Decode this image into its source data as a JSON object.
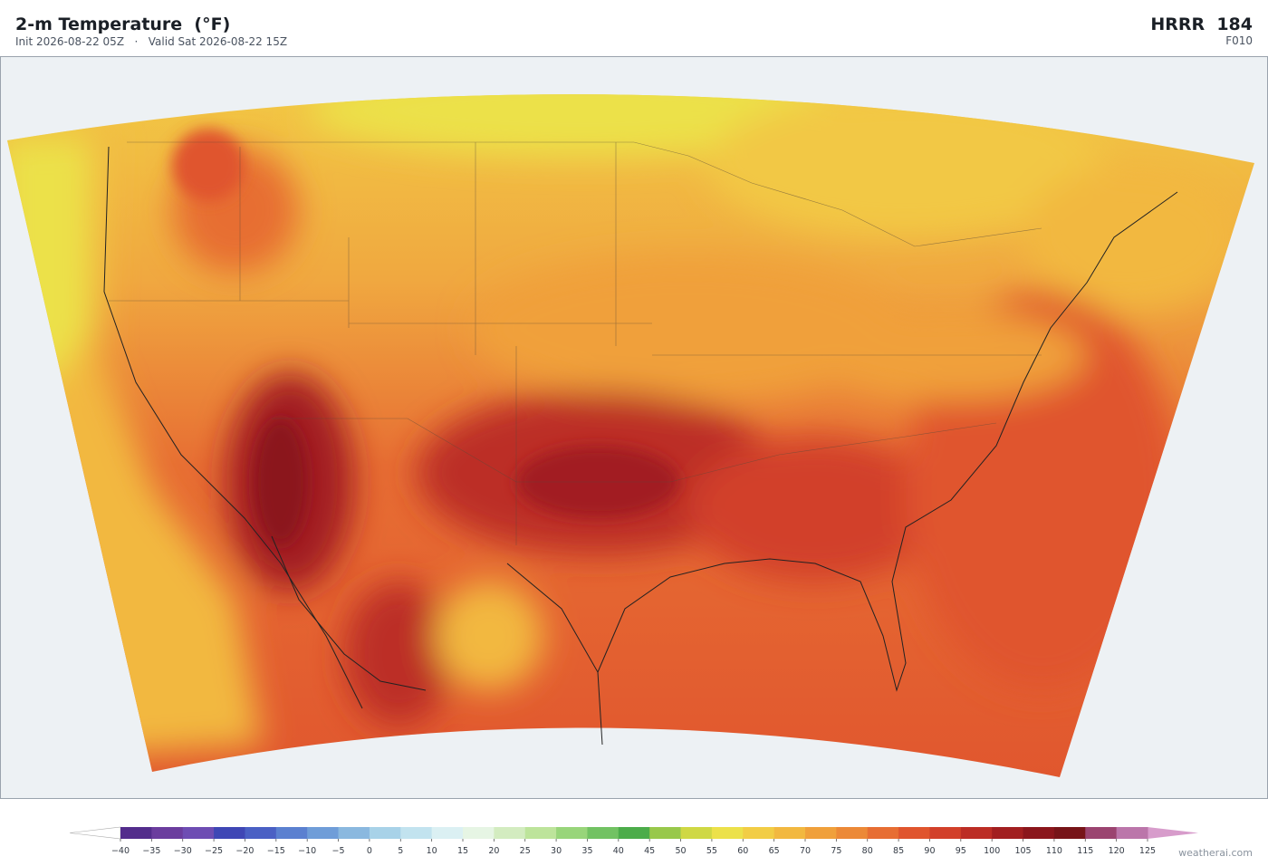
{
  "header": {
    "title": "2-m Temperature  (°F)",
    "init": "Init 2026-08-22 05Z",
    "separator": "·",
    "valid": "Valid Sat 2026-08-22 15Z",
    "model": "HRRR  184",
    "forecast_hour": "F010"
  },
  "colorbar": {
    "range": [
      -40,
      125
    ],
    "ticks": [
      {
        "value": -40,
        "label": "−40"
      },
      {
        "value": -35,
        "label": "−35"
      },
      {
        "value": -30,
        "label": "−30"
      },
      {
        "value": -25,
        "label": "−25"
      },
      {
        "value": -20,
        "label": "−20"
      },
      {
        "value": -15,
        "label": "−15"
      },
      {
        "value": -10,
        "label": "−10"
      },
      {
        "value": -5,
        "label": "−5"
      },
      0,
      5,
      10,
      15,
      20,
      25,
      30,
      35,
      40,
      45,
      50,
      55,
      60,
      65,
      70,
      75,
      80,
      85,
      90,
      95,
      100,
      105,
      110,
      115,
      120,
      125
    ],
    "colors": [
      "#532d8c",
      "#6b3d9e",
      "#6e4db3",
      "#3f47b5",
      "#4a60c4",
      "#5b80d0",
      "#6f9dd8",
      "#8ab8df",
      "#a8d2e8",
      "#c2e3ef",
      "#dbf0f3",
      "#e6f5e4",
      "#d3ecc0",
      "#bde49b",
      "#98d57a",
      "#72c263",
      "#4cac4a",
      "#98c84b",
      "#cfd844",
      "#ece14a",
      "#f2cd45",
      "#f2b840",
      "#f0a03b",
      "#ec8937",
      "#e76e33",
      "#e0552e",
      "#d2402a",
      "#bc2d25",
      "#a21f20",
      "#8b161c",
      "#771418",
      "#9b4470",
      "#bb76aa"
    ],
    "under_color": "#ffffff",
    "over_color": "#d79ccb"
  },
  "credit": "weatherai.com"
}
